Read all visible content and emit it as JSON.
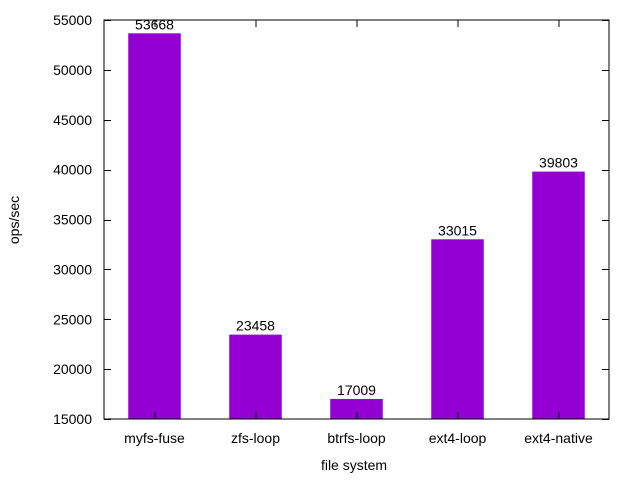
{
  "chart_data": {
    "type": "bar",
    "title": "",
    "xlabel": "file system",
    "ylabel": "ops/sec",
    "categories": [
      "myfs-fuse",
      "zfs-loop",
      "btrfs-loop",
      "ext4-loop",
      "ext4-native"
    ],
    "values": [
      53668,
      23458,
      17009,
      33015,
      39803
    ],
    "data_labels": [
      "53668",
      "23458",
      "17009",
      "33015",
      "39803"
    ],
    "ylim": [
      15000,
      55000
    ],
    "yticks": [
      15000,
      20000,
      25000,
      30000,
      35000,
      40000,
      45000,
      50000,
      55000
    ],
    "ytick_labels": [
      "15000",
      "20000",
      "25000",
      "30000",
      "35000",
      "40000",
      "45000",
      "50000",
      "55000"
    ],
    "grid": false,
    "legend": "none",
    "bar_color": "#9400d3"
  }
}
